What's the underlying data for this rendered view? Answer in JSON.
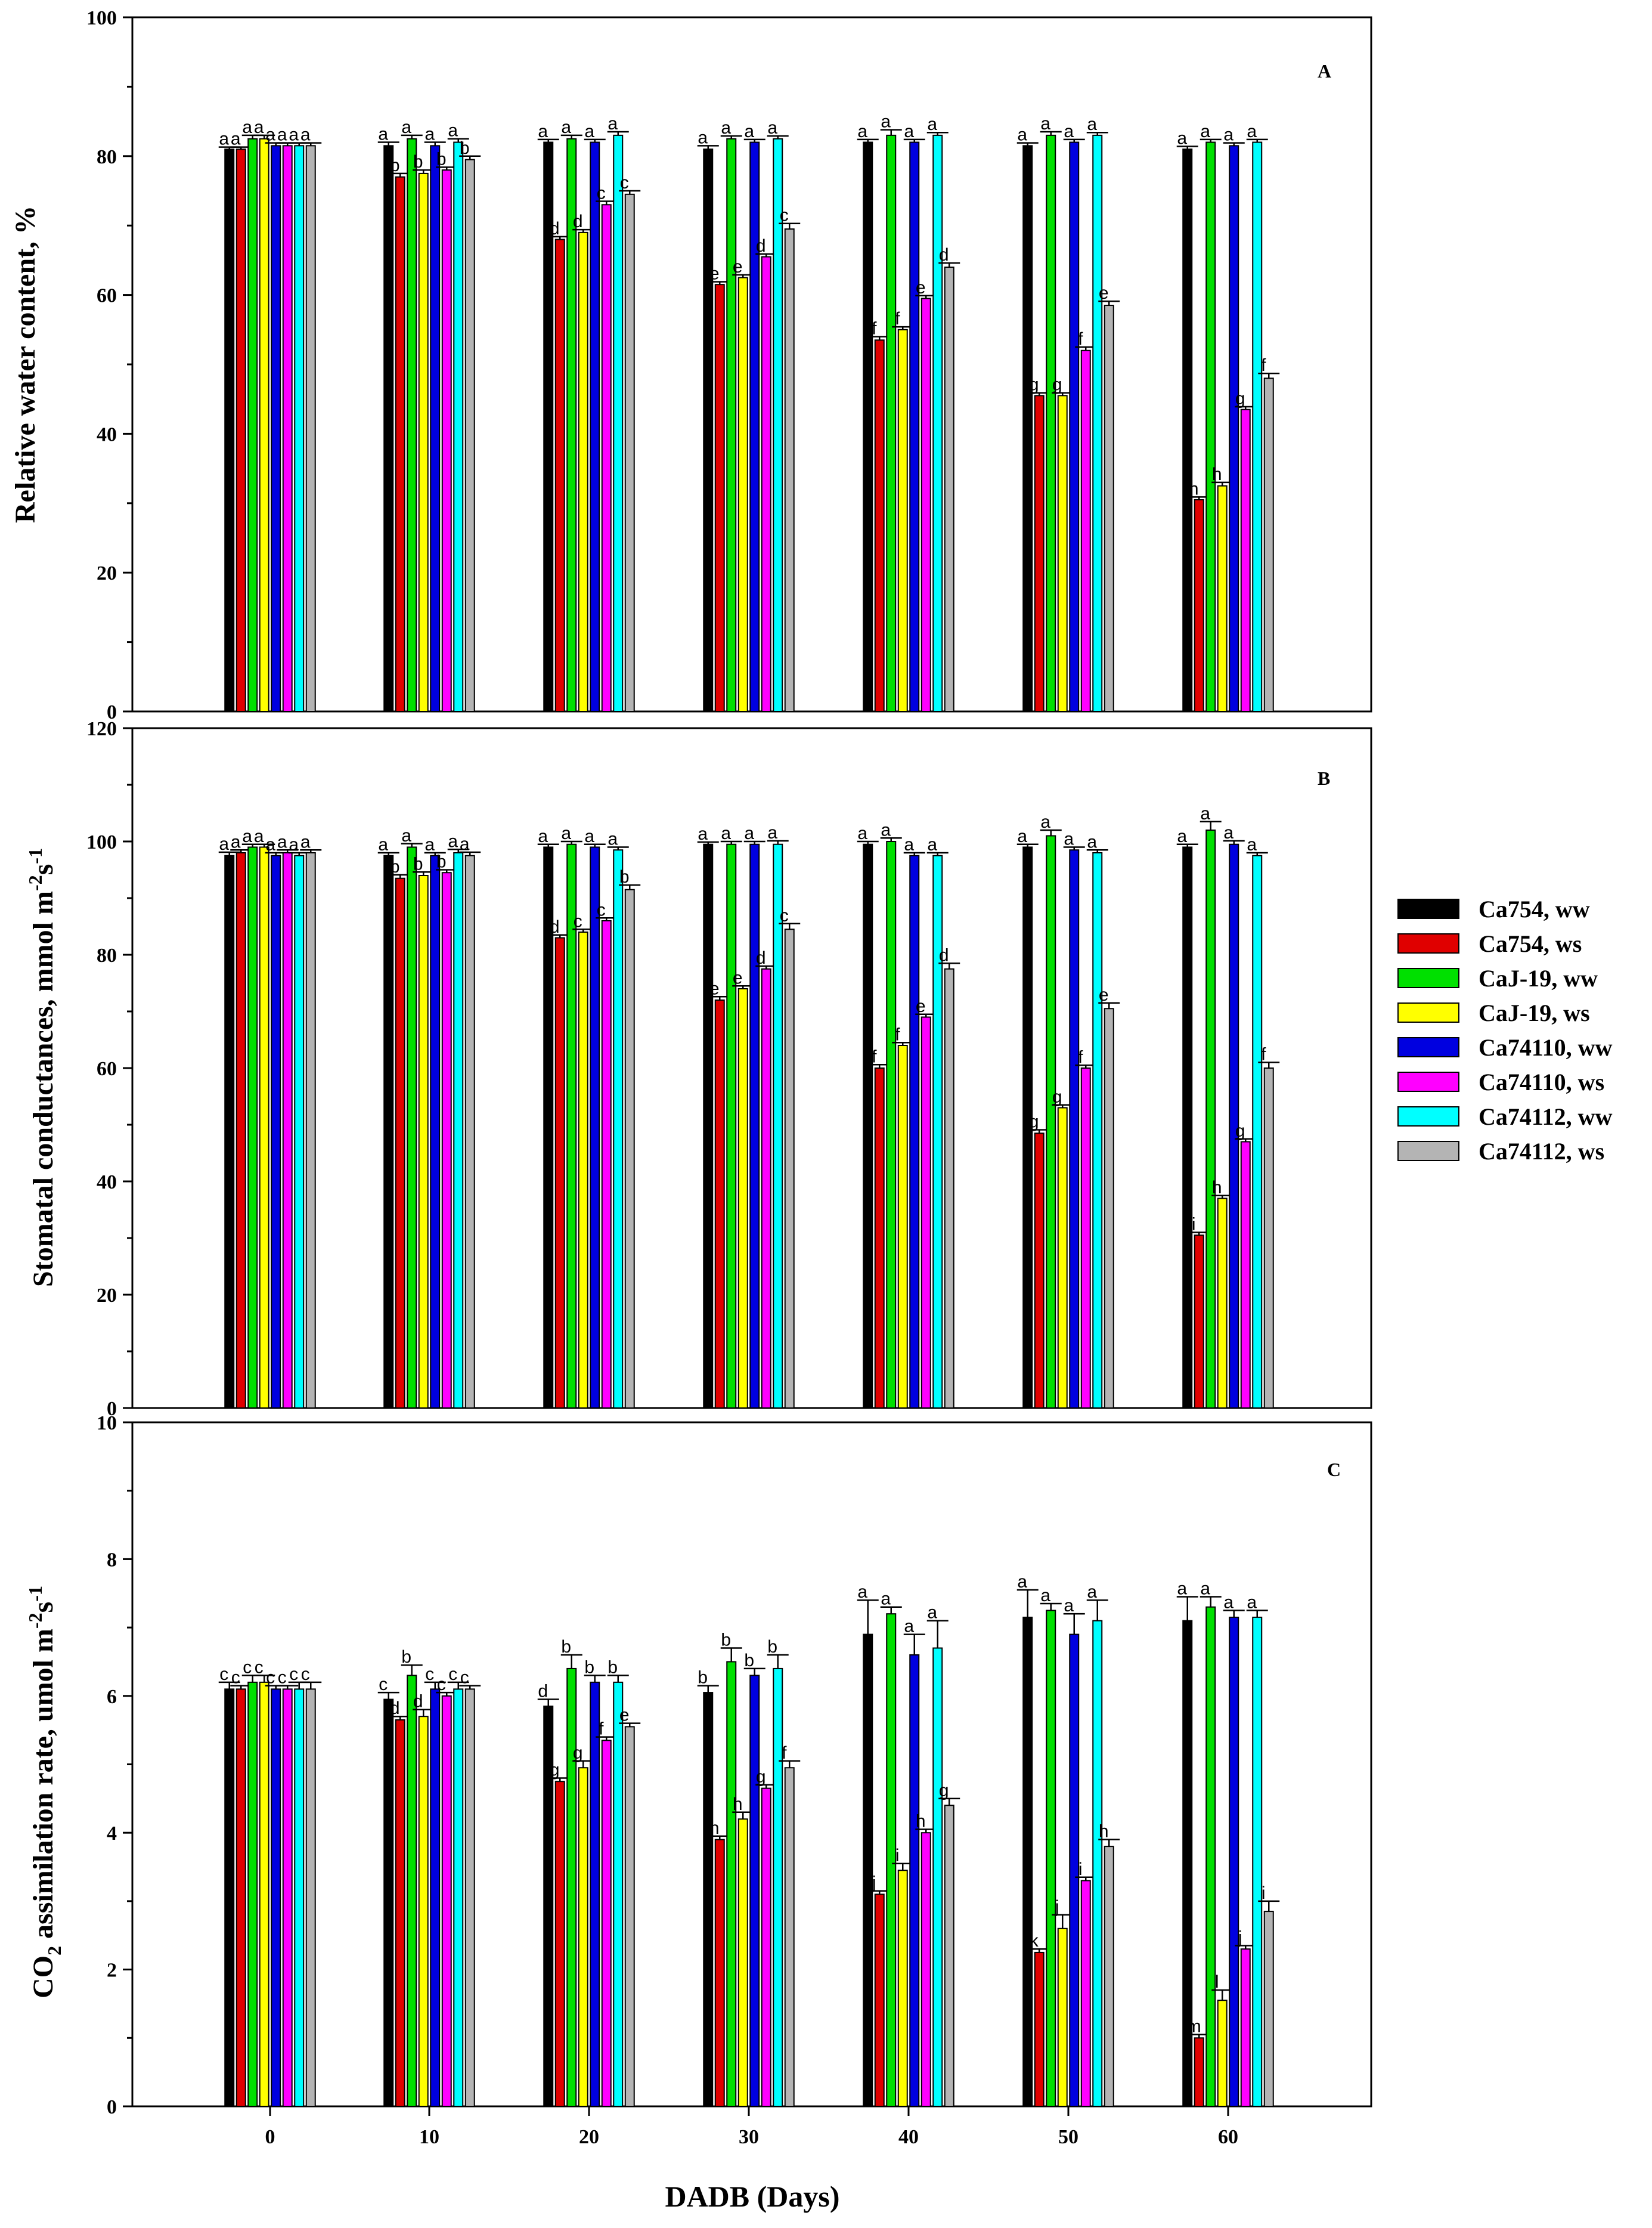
{
  "chart_data": {
    "type": "bar",
    "x_label": "DADB (Days)",
    "categories": [
      "0",
      "10",
      "20",
      "30",
      "40",
      "50",
      "60"
    ],
    "series_names": [
      "Ca754, ww",
      "Ca754, ws",
      "CaJ-19, ww",
      "CaJ-19, ws",
      "Ca74110, ww",
      "Ca74110, ws",
      "Ca74112, ww",
      "Ca74112, ws"
    ],
    "series_colors": [
      "#000000",
      "#e00000",
      "#00e000",
      "#ffff00",
      "#0000e0",
      "#ff00ff",
      "#00ffff",
      "#b4b4b4"
    ],
    "panels": [
      {
        "label": "A",
        "ylabel_main": "Relative water content, %",
        "ylim": [
          0,
          100
        ],
        "yticks": [
          "0",
          "20",
          "40",
          "60",
          "80",
          "100"
        ],
        "series": [
          {
            "name": "Ca754, ww",
            "values": [
              81,
              81.5,
              82,
              81,
              82,
              81.5,
              81
            ],
            "errors": [
              0.3,
              0.5,
              0.4,
              0.5,
              0.4,
              0.4,
              0.4
            ],
            "letters": [
              "a",
              "a",
              "a",
              "a",
              "a",
              "a",
              "a"
            ]
          },
          {
            "name": "Ca754, ws",
            "values": [
              81,
              77,
              68,
              61.5,
              53.5,
              45.5,
              30.5
            ],
            "errors": [
              0.3,
              0.5,
              0.4,
              0.4,
              0.5,
              0.4,
              0.4
            ],
            "letters": [
              "a",
              "b",
              "d",
              "e",
              "f",
              "g",
              "h"
            ]
          },
          {
            "name": "CaJ-19, ww",
            "values": [
              82.5,
              82.5,
              82.5,
              82.5,
              83,
              83,
              82
            ],
            "errors": [
              0.5,
              0.5,
              0.5,
              0.4,
              0.8,
              0.5,
              0.4
            ],
            "letters": [
              "a",
              "a",
              "a",
              "a",
              "a",
              "a",
              "a"
            ]
          },
          {
            "name": "CaJ-19, ws",
            "values": [
              82.5,
              77.5,
              69,
              62.5,
              55,
              45.5,
              32.5
            ],
            "errors": [
              0.5,
              0.5,
              0.4,
              0.4,
              0.4,
              0.4,
              0.5
            ],
            "letters": [
              "a",
              "b",
              "d",
              "e",
              "f",
              "g",
              "h"
            ]
          },
          {
            "name": "Ca74110, ww",
            "values": [
              81.5,
              81.5,
              82,
              82,
              82,
              82,
              81.5
            ],
            "errors": [
              0.4,
              0.5,
              0.4,
              0.4,
              0.4,
              0.4,
              0.4
            ],
            "letters": [
              "a",
              "a",
              "a",
              "a",
              "a",
              "a",
              "a"
            ]
          },
          {
            "name": "Ca74110, ws",
            "values": [
              81.5,
              78,
              73,
              65.5,
              59.5,
              52,
              43.5
            ],
            "errors": [
              0.4,
              0.4,
              0.5,
              0.4,
              0.4,
              0.5,
              0.4
            ],
            "letters": [
              "a",
              "b",
              "c",
              "d",
              "e",
              "f",
              "g"
            ]
          },
          {
            "name": "Ca74112, ww",
            "values": [
              81.5,
              82,
              83,
              82.5,
              83,
              83,
              82
            ],
            "errors": [
              0.4,
              0.5,
              0.5,
              0.4,
              0.4,
              0.4,
              0.4
            ],
            "letters": [
              "a",
              "a",
              "a",
              "a",
              "a",
              "a",
              "a"
            ]
          },
          {
            "name": "Ca74112, ws",
            "values": [
              81.5,
              79.5,
              74.5,
              69.5,
              64,
              58.5,
              48
            ],
            "errors": [
              0.4,
              0.5,
              0.5,
              0.8,
              0.6,
              0.6,
              0.7
            ],
            "letters": [
              "a",
              "b",
              "c",
              "c",
              "d",
              "e",
              "f"
            ]
          }
        ]
      },
      {
        "label": "B",
        "ylabel_main": "Stomatal conductances, mmol m",
        "ylabel_sup1": "-2",
        "ylabel_mid": "s",
        "ylabel_sup2": "-1",
        "ylim": [
          0,
          120
        ],
        "yticks": [
          "0",
          "20",
          "40",
          "60",
          "80",
          "100",
          "120"
        ],
        "series": [
          {
            "name": "Ca754, ww",
            "values": [
              97.5,
              97.5,
              99,
              99.5,
              99.5,
              99,
              99
            ],
            "errors": [
              0.6,
              0.5,
              0.5,
              0.4,
              0.5,
              0.5,
              0.5
            ],
            "letters": [
              "a",
              "a",
              "a",
              "a",
              "a",
              "a",
              "a"
            ]
          },
          {
            "name": "Ca754, ws",
            "values": [
              98,
              93.5,
              83,
              72,
              60,
              48.5,
              30.5
            ],
            "errors": [
              0.5,
              0.6,
              0.5,
              0.6,
              0.6,
              0.6,
              0.5
            ],
            "letters": [
              "a",
              "b",
              "d",
              "e",
              "f",
              "g",
              "i"
            ]
          },
          {
            "name": "CaJ-19, ww",
            "values": [
              99,
              99,
              99.5,
              99.5,
              100,
              101,
              102
            ],
            "errors": [
              0.5,
              0.6,
              0.5,
              0.5,
              0.6,
              1.0,
              1.5
            ],
            "letters": [
              "a",
              "a",
              "a",
              "a",
              "a",
              "a",
              "a"
            ]
          },
          {
            "name": "CaJ-19, ws",
            "values": [
              99,
              94,
              84,
              74,
              64,
              53,
              37
            ],
            "errors": [
              0.5,
              0.6,
              0.5,
              0.5,
              0.5,
              0.5,
              0.5
            ],
            "letters": [
              "a",
              "b",
              "c",
              "e",
              "f",
              "g",
              "h"
            ]
          },
          {
            "name": "Ca74110, ww",
            "values": [
              97.5,
              97.5,
              99,
              99.5,
              97.5,
              98.5,
              99.5
            ],
            "errors": [
              0.5,
              0.5,
              0.5,
              0.5,
              0.5,
              0.5,
              0.6
            ],
            "letters": [
              "a",
              "a",
              "a",
              "a",
              "a",
              "a",
              "a"
            ]
          },
          {
            "name": "Ca74110, ws",
            "values": [
              98,
              94.5,
              86,
              77.5,
              69,
              60,
              47
            ],
            "errors": [
              0.5,
              0.5,
              0.5,
              0.5,
              0.5,
              0.5,
              0.5
            ],
            "letters": [
              "a",
              "b",
              "c",
              "d",
              "e",
              "f",
              "g"
            ]
          },
          {
            "name": "Ca74112, ww",
            "values": [
              97.5,
              98,
              98.5,
              99.5,
              97.5,
              98,
              97.5
            ],
            "errors": [
              0.5,
              0.6,
              0.5,
              0.6,
              0.5,
              0.5,
              0.5
            ],
            "letters": [
              "a",
              "a",
              "a",
              "a",
              "a",
              "a",
              "a"
            ]
          },
          {
            "name": "Ca74112, ws",
            "values": [
              98,
              97.5,
              91.5,
              84.5,
              77.5,
              70.5,
              60
            ],
            "errors": [
              0.5,
              0.6,
              0.8,
              1.0,
              1.0,
              1.0,
              1.0
            ],
            "letters": [
              "a",
              "a",
              "b",
              "c",
              "d",
              "e",
              "f"
            ]
          }
        ]
      },
      {
        "label": "C",
        "ylabel_main": "CO",
        "ylabel_sub": "2",
        "ylabel_rest": " assimilation rate, umol m",
        "ylabel_sup1": "-2",
        "ylabel_mid": "s",
        "ylabel_sup2": "-1",
        "ylim": [
          0,
          10
        ],
        "yticks": [
          "0",
          "2",
          "4",
          "6",
          "8",
          "10"
        ],
        "series": [
          {
            "name": "Ca754, ww",
            "values": [
              6.1,
              5.95,
              5.85,
              6.05,
              6.9,
              7.15,
              7.1
            ],
            "errors": [
              0.1,
              0.1,
              0.1,
              0.1,
              0.5,
              0.4,
              0.35
            ],
            "letters": [
              "c",
              "c",
              "d",
              "b",
              "a",
              "a",
              "a"
            ]
          },
          {
            "name": "Ca754, ws",
            "values": [
              6.1,
              5.65,
              4.75,
              3.9,
              3.1,
              2.25,
              1.0
            ],
            "errors": [
              0.05,
              0.05,
              0.05,
              0.05,
              0.05,
              0.05,
              0.05
            ],
            "letters": [
              "c",
              "d",
              "g",
              "h",
              "j",
              "k",
              "m"
            ]
          },
          {
            "name": "CaJ-19, ww",
            "values": [
              6.2,
              6.3,
              6.4,
              6.5,
              7.2,
              7.25,
              7.3
            ],
            "errors": [
              0.1,
              0.15,
              0.2,
              0.2,
              0.1,
              0.1,
              0.15
            ],
            "letters": [
              "c",
              "b",
              "b",
              "b",
              "a",
              "a",
              "a"
            ]
          },
          {
            "name": "CaJ-19, ws",
            "values": [
              6.2,
              5.7,
              4.95,
              4.2,
              3.45,
              2.6,
              1.55
            ],
            "errors": [
              0.1,
              0.1,
              0.1,
              0.1,
              0.1,
              0.2,
              0.15
            ],
            "letters": [
              "c",
              "d",
              "g",
              "h",
              "i",
              "j",
              "l"
            ]
          },
          {
            "name": "Ca74110, ww",
            "values": [
              6.1,
              6.1,
              6.2,
              6.3,
              6.6,
              6.9,
              7.15
            ],
            "errors": [
              0.05,
              0.1,
              0.1,
              0.1,
              0.3,
              0.3,
              0.1
            ],
            "letters": [
              "c",
              "c",
              "b",
              "b",
              "a",
              "a",
              "a"
            ]
          },
          {
            "name": "Ca74110, ws",
            "values": [
              6.1,
              6.0,
              5.35,
              4.65,
              4.0,
              3.3,
              2.3
            ],
            "errors": [
              0.05,
              0.05,
              0.05,
              0.05,
              0.05,
              0.05,
              0.05
            ],
            "letters": [
              "c",
              "c",
              "f",
              "g",
              "h",
              "i",
              "j"
            ]
          },
          {
            "name": "Ca74112, ww",
            "values": [
              6.1,
              6.1,
              6.2,
              6.4,
              6.7,
              7.1,
              7.15
            ],
            "errors": [
              0.1,
              0.1,
              0.1,
              0.2,
              0.4,
              0.3,
              0.1
            ],
            "letters": [
              "c",
              "c",
              "b",
              "b",
              "a",
              "a",
              "a"
            ]
          },
          {
            "name": "Ca74112, ws",
            "values": [
              6.1,
              6.1,
              5.55,
              4.95,
              4.4,
              3.8,
              2.85
            ],
            "errors": [
              0.1,
              0.05,
              0.05,
              0.1,
              0.1,
              0.1,
              0.15
            ],
            "letters": [
              "c",
              "c",
              "e",
              "f",
              "g",
              "h",
              "i"
            ]
          }
        ]
      }
    ]
  }
}
